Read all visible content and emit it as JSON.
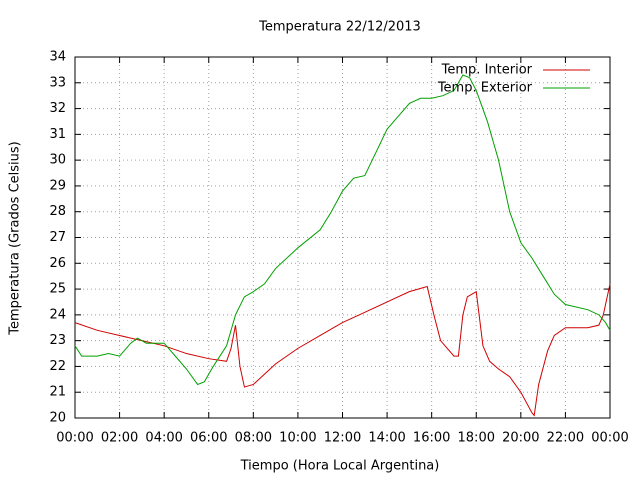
{
  "chart_data": {
    "type": "line",
    "title": "Temperatura 22/12/2013",
    "x_label": "Tiempo (Hora Local Argentina)",
    "y_label": "Temperatura (Grados Celsius)",
    "xlim": [
      0,
      24
    ],
    "xticks": [
      {
        "value": 0,
        "label": "00:00"
      },
      {
        "value": 2,
        "label": "02:00"
      },
      {
        "value": 4,
        "label": "04:00"
      },
      {
        "value": 6,
        "label": "06:00"
      },
      {
        "value": 8,
        "label": "08:00"
      },
      {
        "value": 10,
        "label": "10:00"
      },
      {
        "value": 12,
        "label": "12:00"
      },
      {
        "value": 14,
        "label": "14:00"
      },
      {
        "value": 16,
        "label": "16:00"
      },
      {
        "value": 18,
        "label": "18:00"
      },
      {
        "value": 20,
        "label": "20:00"
      },
      {
        "value": 22,
        "label": "22:00"
      },
      {
        "value": 24,
        "label": "00:00"
      }
    ],
    "ylim": [
      20,
      34
    ],
    "yticks": [
      20,
      21,
      22,
      23,
      24,
      25,
      26,
      27,
      28,
      29,
      30,
      31,
      32,
      33,
      34
    ],
    "grid": true,
    "legend": "top-right",
    "series": [
      {
        "name": "Temp. Interior",
        "color": "#d00000",
        "x": [
          0,
          1,
          2,
          3,
          4,
          5,
          6,
          6.8,
          7.0,
          7.2,
          7.4,
          7.6,
          8,
          9,
          10,
          11,
          12,
          13,
          14,
          15,
          15.8,
          16.1,
          16.4,
          17,
          17.2,
          17.4,
          17.6,
          18,
          18.3,
          18.6,
          19,
          19.5,
          20,
          20.5,
          20.6,
          20.8,
          21.2,
          21.5,
          22,
          23,
          23.5,
          23.7,
          24
        ],
        "values": [
          23.7,
          23.4,
          23.2,
          23.0,
          22.8,
          22.5,
          22.3,
          22.2,
          22.7,
          23.6,
          22.0,
          21.2,
          21.3,
          22.1,
          22.7,
          23.2,
          23.7,
          24.1,
          24.5,
          24.9,
          25.1,
          24.0,
          23.0,
          22.4,
          22.4,
          24.0,
          24.7,
          24.9,
          22.8,
          22.2,
          21.9,
          21.6,
          21.0,
          20.2,
          20.1,
          21.3,
          22.6,
          23.2,
          23.5,
          23.5,
          23.6,
          24.0,
          25.2
        ]
      },
      {
        "name": "Temp. Exterior",
        "color": "#00a000",
        "x": [
          0,
          0.3,
          1,
          1.5,
          2,
          2.5,
          2.8,
          3.2,
          4,
          4.5,
          5,
          5.5,
          5.8,
          6.2,
          6.8,
          7.2,
          7.6,
          8,
          8.5,
          9,
          10,
          11,
          11.5,
          12,
          12.5,
          13,
          13.5,
          14,
          14.5,
          15,
          15.5,
          16,
          16.5,
          17,
          17.4,
          17.7,
          18,
          18.5,
          19,
          19.5,
          20,
          20.5,
          21,
          21.5,
          22,
          23,
          23.5,
          23.8,
          24
        ],
        "values": [
          22.8,
          22.4,
          22.4,
          22.5,
          22.4,
          22.9,
          23.1,
          22.9,
          22.9,
          22.4,
          21.9,
          21.3,
          21.4,
          22.0,
          22.8,
          24.0,
          24.7,
          24.9,
          25.2,
          25.8,
          26.6,
          27.3,
          28.0,
          28.8,
          29.3,
          29.4,
          30.3,
          31.2,
          31.7,
          32.2,
          32.4,
          32.4,
          32.5,
          32.7,
          33.3,
          33.2,
          32.7,
          31.5,
          30.0,
          28.0,
          26.8,
          26.2,
          25.5,
          24.8,
          24.4,
          24.2,
          24.0,
          23.7,
          23.4
        ]
      }
    ]
  }
}
